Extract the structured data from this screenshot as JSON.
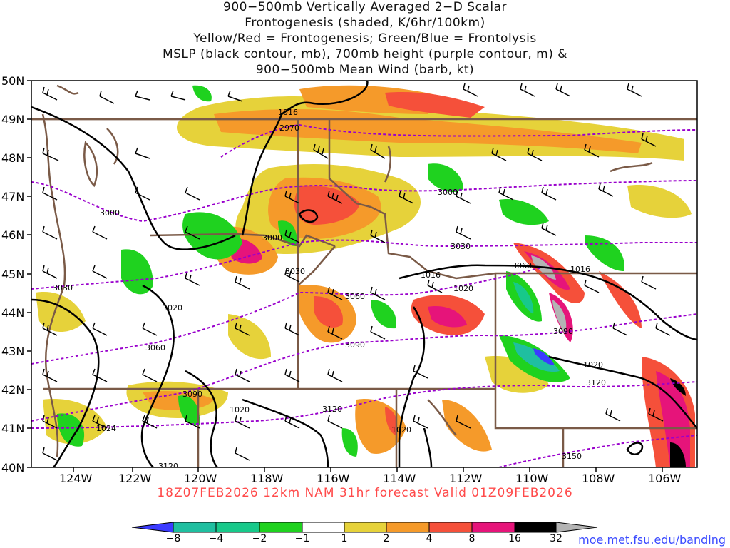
{
  "title": {
    "line1": "900−500mb Vertically Averaged 2−D Scalar",
    "line2": "Frontogenesis (shaded, K/6hr/100km)",
    "line3": "Yellow/Red = Frontogenesis;  Green/Blue = Frontolysis",
    "line4": "MSLP (black contour, mb), 700mb height (purple contour, m) &",
    "line5": "900−500mb Mean Wind (barb, kt)"
  },
  "axes": {
    "lat_labels": [
      "50N",
      "49N",
      "48N",
      "47N",
      "46N",
      "45N",
      "44N",
      "43N",
      "42N",
      "41N",
      "40N"
    ],
    "lon_labels": [
      "124W",
      "122W",
      "120W",
      "118W",
      "116W",
      "114W",
      "112W",
      "110W",
      "108W",
      "106W"
    ]
  },
  "contours": {
    "mslp_labels": [
      "1016",
      "1016",
      "1016",
      "1020",
      "1020",
      "1020",
      "1020",
      "1020",
      "1024"
    ],
    "height_labels": [
      "2970",
      "3000",
      "3000",
      "3000",
      "3030",
      "3030",
      "3030",
      "3060",
      "3060",
      "3060",
      "3090",
      "3090",
      "3090",
      "3120",
      "3120",
      "3120",
      "3150"
    ]
  },
  "colorbar": {
    "labels": [
      "−8",
      "−4",
      "−2",
      "−1",
      "1",
      "2",
      "4",
      "8",
      "16",
      "32"
    ],
    "colors": [
      "#3b3bff",
      "#1fbfa0",
      "#17c98a",
      "#1fd21f",
      "#ffffff",
      "#e6d23a",
      "#f59a2a",
      "#f5503a",
      "#e6147a",
      "#000000",
      "#b4b4b4"
    ]
  },
  "footer": {
    "run": "18Z07FEB2026 12km NAM 31hr forecast Valid 01Z09FEB2026",
    "credit": "moe.met.fsu.edu/banding"
  }
}
